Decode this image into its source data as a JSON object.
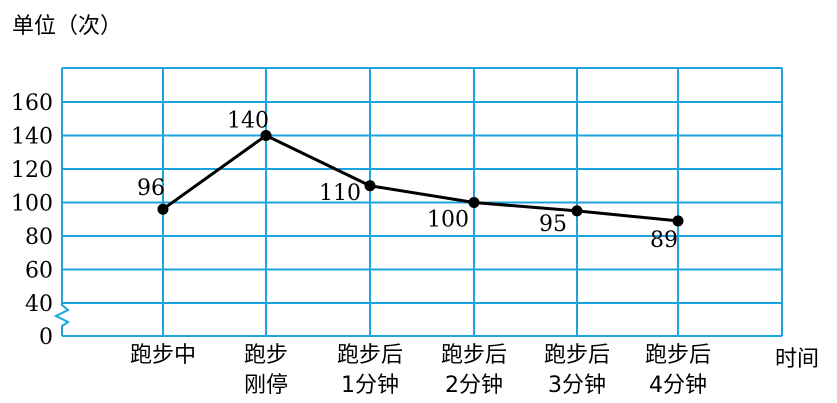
{
  "chart_data": {
    "type": "line",
    "title": "",
    "ylabel": "单位（次）",
    "xlabel": "时间",
    "y_ticks": [
      0,
      40,
      60,
      80,
      100,
      120,
      140,
      160
    ],
    "y_axis_break": true,
    "ylim": [
      30,
      170
    ],
    "grid": true,
    "grid_color": "#1aa3dc",
    "line_color": "#000000",
    "categories": [
      [
        "跑步中"
      ],
      [
        "跑步",
        "刚停"
      ],
      [
        "跑步后",
        "1分钟"
      ],
      [
        "跑步后",
        "2分钟"
      ],
      [
        "跑步后",
        "3分钟"
      ],
      [
        "跑步后",
        "4分钟"
      ]
    ],
    "series": [
      {
        "values": [
          96,
          140,
          110,
          100,
          95,
          89
        ],
        "data_labels": [
          "96",
          "140",
          "110",
          "100",
          "95",
          "89"
        ]
      }
    ]
  }
}
